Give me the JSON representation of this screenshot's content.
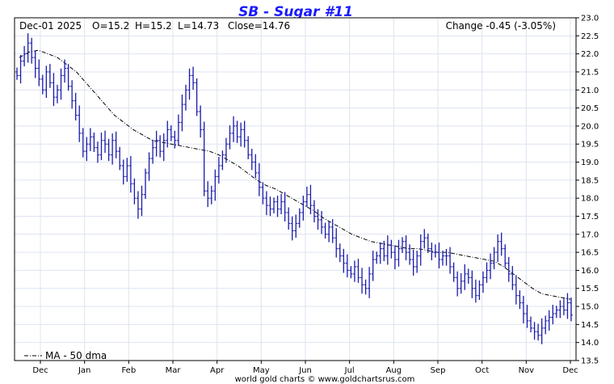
{
  "chart_data": {
    "type": "ohlc",
    "title": "SB  -  Sugar #11",
    "header": {
      "date": "Dec-01  2025",
      "open": "O=15.2",
      "high": "H=15.2",
      "low": "L=14.73",
      "close": "Close=14.76",
      "change": "Change -0.45 (-3.05%)"
    },
    "credit": "world gold charts © www.goldchartsrus.com",
    "legend": "MA - 50 dma",
    "ylim": [
      13.5,
      23.0
    ],
    "y_ticks": [
      "23.0",
      "22.5",
      "22.0",
      "21.5",
      "21.0",
      "20.5",
      "20.0",
      "19.5",
      "19.0",
      "18.5",
      "18.0",
      "17.5",
      "17.0",
      "16.5",
      "16.0",
      "15.5",
      "15.0",
      "14.5",
      "14.0",
      "13.5"
    ],
    "x_ticks": [
      "Dec",
      "Jan",
      "Feb",
      "Mar",
      "Apr",
      "May",
      "Jun",
      "Jul",
      "Aug",
      "Sep",
      "Oct",
      "Nov",
      "Dec"
    ],
    "grid": true,
    "colors": {
      "bars": "#1a1aaa",
      "ma": "#000000",
      "grid": "#dde3ef",
      "title": "#1a1aff"
    },
    "series": [
      {
        "name": "SB",
        "kind": "daily-close",
        "values": [
          21.4,
          21.8,
          22.0,
          22.3,
          21.9,
          21.6,
          21.3,
          21.0,
          21.5,
          21.2,
          20.8,
          21.0,
          21.4,
          21.6,
          21.1,
          20.7,
          20.3,
          19.8,
          19.3,
          19.5,
          19.7,
          19.4,
          19.2,
          19.6,
          19.5,
          19.2,
          19.6,
          19.3,
          18.9,
          18.6,
          18.9,
          18.4,
          18.0,
          17.7,
          18.1,
          18.7,
          19.1,
          19.4,
          19.6,
          19.3,
          19.6,
          19.9,
          19.7,
          19.6,
          20.1,
          20.6,
          21.0,
          21.4,
          21.2,
          20.4,
          19.9,
          18.2,
          18.0,
          18.2,
          18.6,
          18.9,
          19.2,
          19.5,
          19.8,
          20.0,
          19.7,
          19.9,
          19.6,
          19.2,
          19.0,
          18.7,
          18.3,
          18.0,
          17.8,
          17.7,
          17.9,
          17.7,
          17.9,
          17.6,
          17.3,
          17.1,
          17.3,
          17.6,
          17.9,
          18.1,
          17.8,
          17.5,
          17.4,
          17.2,
          17.0,
          17.2,
          16.9,
          16.6,
          16.4,
          16.2,
          16.0,
          15.9,
          16.1,
          15.8,
          15.6,
          15.5,
          15.9,
          16.3,
          16.4,
          16.6,
          16.4,
          16.7,
          16.5,
          16.3,
          16.6,
          16.8,
          16.5,
          16.3,
          16.1,
          16.4,
          16.8,
          16.9,
          16.6,
          16.5,
          16.5,
          16.3,
          16.4,
          16.4,
          16.1,
          15.8,
          15.5,
          15.7,
          15.9,
          15.8,
          15.5,
          15.3,
          15.6,
          15.8,
          16.0,
          16.2,
          16.5,
          16.8,
          16.6,
          16.2,
          15.9,
          15.6,
          15.3,
          15.1,
          14.8,
          14.6,
          14.4,
          14.3,
          14.2,
          14.4,
          14.6,
          14.7,
          14.8,
          14.9,
          15.0,
          14.9,
          15.1,
          14.76
        ]
      },
      {
        "name": "MA - 50 dma",
        "kind": "moving-average",
        "values": [
          21.9,
          22.05,
          22.1,
          22.0,
          21.9,
          21.7,
          21.5,
          21.2,
          20.9,
          20.6,
          20.3,
          20.1,
          19.9,
          19.75,
          19.6,
          19.55,
          19.5,
          19.45,
          19.4,
          19.35,
          19.3,
          19.2,
          19.05,
          18.9,
          18.7,
          18.5,
          18.35,
          18.25,
          18.1,
          17.95,
          17.8,
          17.65,
          17.45,
          17.3,
          17.15,
          17.0,
          16.9,
          16.8,
          16.75,
          16.7,
          16.65,
          16.6,
          16.6,
          16.55,
          16.5,
          16.5,
          16.45,
          16.4,
          16.35,
          16.3,
          16.25,
          16.1,
          15.9,
          15.7,
          15.5,
          15.35,
          15.3,
          15.25,
          15.2
        ]
      }
    ]
  }
}
